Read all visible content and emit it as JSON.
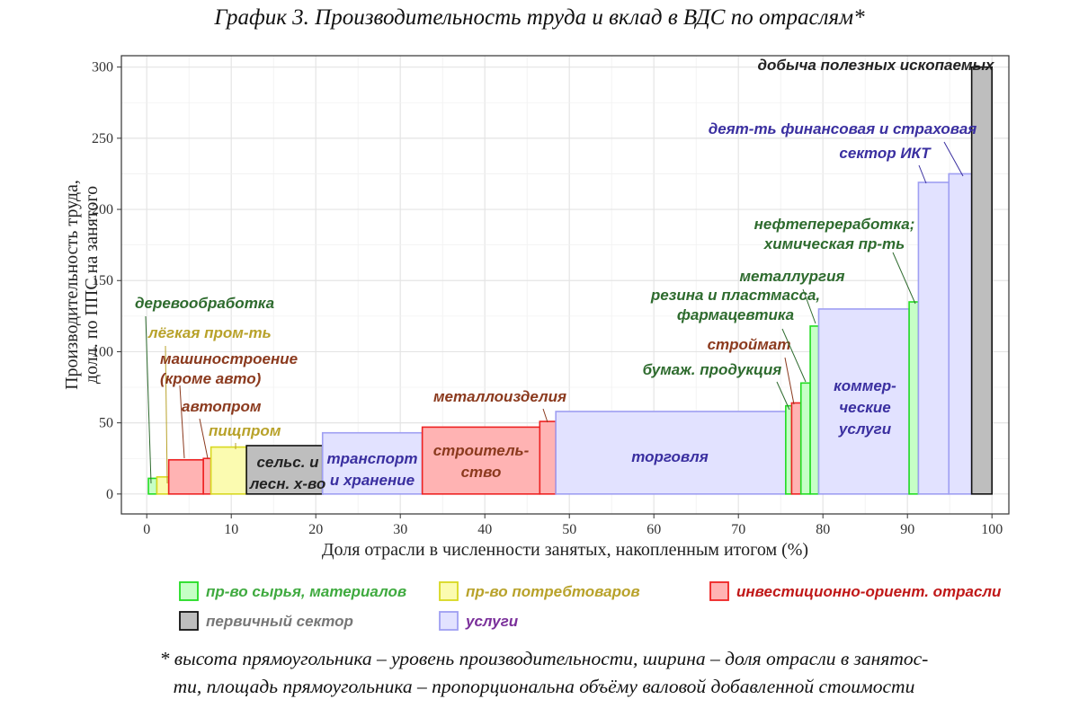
{
  "title": "График 3. Производительность труда и вклад в ВДС по отраслям*",
  "footnote": {
    "line1": "* высота прямоугольника – уровень производительности, ширина – доля отрасли в занятос-",
    "line2": "ти, площадь прямоугольника – пропорциональна объёму валовой добавленной стоимости"
  },
  "colors": {
    "raw": {
      "fill": "#c6ffc6",
      "stroke": "#22dd22",
      "label": "#2e6b2e"
    },
    "consumer": {
      "fill": "#fbfbb0",
      "stroke": "#d8d820",
      "label": "#b8a22a"
    },
    "invest": {
      "fill": "#ffb3b3",
      "stroke": "#ee2222",
      "label": "#8b3a1e"
    },
    "primary": {
      "fill": "#bebebe",
      "stroke": "#111111",
      "label": "#222222"
    },
    "services": {
      "fill": "#e2e2ff",
      "stroke": "#9f9ff2",
      "label": "#3a2fa0"
    }
  },
  "chart_data": {
    "type": "variable-width bar (marimekko)",
    "xlabel": "Доля отрасли в численности занятых, накопленным итогом (%)",
    "ylabel_line1": "Производительность труда,",
    "ylabel_line2": "долл. по ППС на занятого",
    "xlim": [
      -3,
      102
    ],
    "ylim": [
      -14,
      308
    ],
    "xticks": [
      0,
      10,
      20,
      30,
      40,
      50,
      60,
      70,
      80,
      90,
      100
    ],
    "yticks": [
      0,
      50,
      100,
      150,
      200,
      250,
      300
    ],
    "bars": [
      {
        "name": "деревообработка",
        "group": "raw",
        "x0": 0.2,
        "x1": 1.2,
        "y": 11
      },
      {
        "name": "лёгкая пром-ть",
        "group": "consumer",
        "x0": 1.2,
        "x2": 2.6,
        "x1": 2.6,
        "y": 12
      },
      {
        "name": "машиностроение (кроме авто)",
        "group": "invest",
        "x0": 2.6,
        "x1": 6.7,
        "y": 24
      },
      {
        "name": "автопром",
        "group": "invest",
        "x0": 6.7,
        "x1": 7.6,
        "y": 25
      },
      {
        "name": "пищпром",
        "group": "consumer",
        "x0": 7.6,
        "x1": 11.8,
        "y": 33
      },
      {
        "name": "сельс. и лесн. х-во",
        "group": "primary",
        "x0": 11.8,
        "x1": 20.8,
        "y": 34
      },
      {
        "name": "транспорт и хранение",
        "group": "services",
        "x0": 20.8,
        "x1": 32.6,
        "y": 43
      },
      {
        "name": "строитель-ство",
        "group": "invest",
        "x0": 32.6,
        "x1": 46.5,
        "y": 47
      },
      {
        "name": "металлоизделия",
        "group": "invest",
        "x0": 46.5,
        "x1": 48.4,
        "y": 51
      },
      {
        "name": "торговля",
        "group": "services",
        "x0": 48.4,
        "x1": 75.6,
        "y": 58
      },
      {
        "name": "бумаж. продукция",
        "group": "raw",
        "x0": 75.6,
        "x1": 76.3,
        "y": 62
      },
      {
        "name": "строймат",
        "group": "invest",
        "x0": 76.3,
        "x1": 77.4,
        "y": 64
      },
      {
        "name": "резина и пластмасса, фармацевтика",
        "group": "raw",
        "x0": 77.4,
        "x1": 78.5,
        "y": 78
      },
      {
        "name": "металлургия",
        "group": "raw",
        "x0": 78.5,
        "x1": 79.5,
        "y": 118
      },
      {
        "name": "коммер-ческие услуги",
        "group": "services",
        "x0": 79.5,
        "x1": 90.2,
        "y": 130
      },
      {
        "name": "нефтепереработка; химическая пр-ть",
        "group": "raw",
        "x0": 90.2,
        "x1": 91.3,
        "y": 135
      },
      {
        "name": "сектор ИКТ",
        "group": "services",
        "x0": 91.3,
        "x1": 94.9,
        "y": 219
      },
      {
        "name": "деят-ть финансовая и страховая",
        "group": "services",
        "x0": 94.9,
        "x1": 97.6,
        "y": 225
      },
      {
        "name": "добыча полезных ископаемых",
        "group": "primary",
        "x0": 97.6,
        "x1": 100,
        "y": 300
      }
    ],
    "labels": [
      {
        "lines": [
          "деревообработка"
        ],
        "group": "raw"
      },
      {
        "lines": [
          "лёгкая пром-ть"
        ],
        "group": "consumer"
      },
      {
        "lines": [
          "машиностроение",
          "(кроме авто)"
        ],
        "group": "invest"
      },
      {
        "lines": [
          "автопром"
        ],
        "group": "invest"
      },
      {
        "lines": [
          "пищпром"
        ],
        "group": "consumer"
      },
      {
        "lines": [
          "сельс. и",
          "лесн. х-во"
        ],
        "group": "primary"
      },
      {
        "lines": [
          "транспорт",
          "и хранение"
        ],
        "group": "services"
      },
      {
        "lines": [
          "строитель-",
          "ство"
        ],
        "group": "invest"
      },
      {
        "lines": [
          "металлоизделия"
        ],
        "group": "invest"
      },
      {
        "lines": [
          "торговля"
        ],
        "group": "services"
      },
      {
        "lines": [
          "бумаж. продукция"
        ],
        "group": "raw"
      },
      {
        "lines": [
          "строймат"
        ],
        "group": "invest"
      },
      {
        "lines": [
          "резина и пластмасса,",
          "фармацевтика"
        ],
        "group": "raw"
      },
      {
        "lines": [
          "металлургия"
        ],
        "group": "raw"
      },
      {
        "lines": [
          "коммер-",
          "ческие",
          "услуги"
        ],
        "group": "services"
      },
      {
        "lines": [
          "нефтепереработка;",
          "химическая пр-ть"
        ],
        "group": "raw"
      },
      {
        "lines": [
          "сектор ИКТ"
        ],
        "group": "services"
      },
      {
        "lines": [
          "деят-ть финансовая и страховая"
        ],
        "group": "services"
      },
      {
        "lines": [
          "добыча полезных ископаемых"
        ],
        "group": "primary"
      }
    ],
    "legend": [
      {
        "label": "пр-во сырья, материалов",
        "group": "raw",
        "text_color": "#3faa3f"
      },
      {
        "label": "пр-во потребтоваров",
        "group": "consumer",
        "text_color": "#b8a22a"
      },
      {
        "label": "инвестиционно-ориент. отрасли",
        "group": "invest",
        "text_color": "#c01818"
      },
      {
        "label": "первичный сектор",
        "group": "primary",
        "text_color": "#777777"
      },
      {
        "label": "услуги",
        "group": "services",
        "text_color": "#7a2f9a"
      }
    ],
    "grid": true
  }
}
